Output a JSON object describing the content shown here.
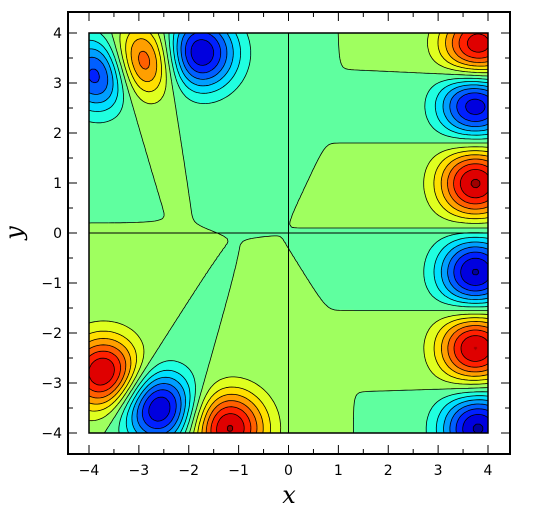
{
  "chart_data": {
    "type": "heatmap",
    "subtype": "filled-contour",
    "title": "",
    "xlabel": "x",
    "ylabel": "y",
    "xlim": [
      -4,
      4
    ],
    "ylim": [
      -4,
      4
    ],
    "x_ticks": [
      -4,
      -3,
      -2,
      -1,
      0,
      1,
      2,
      3,
      4
    ],
    "y_ticks": [
      4,
      3,
      2,
      1,
      0,
      -1,
      -2,
      -3,
      -4
    ],
    "x_tick_labels": [
      "−4",
      "−3",
      "−2",
      "−1",
      "0",
      "1",
      "2",
      "3",
      "4"
    ],
    "y_tick_labels": [
      "4",
      "3",
      "2",
      "1",
      "0",
      "−1",
      "−2",
      "−3",
      "−4"
    ],
    "colormap": "jet",
    "colormap_stops": [
      "#00007f",
      "#0000ff",
      "#007fff",
      "#00ffff",
      "#7fff7f",
      "#ffff00",
      "#ff7f00",
      "#ff0000",
      "#7f0000"
    ],
    "contour_line_color": "#000000",
    "grid": false,
    "reference_lines": [
      "x = 0",
      "y = 0"
    ],
    "features": [
      {
        "x": -3.0,
        "y": 3.4,
        "sign": "positive"
      },
      {
        "x": -3.7,
        "y": 3.2,
        "sign": "negative"
      },
      {
        "x": -1.8,
        "y": 3.6,
        "sign": "negative"
      },
      {
        "x": 3.8,
        "y": 3.7,
        "sign": "positive"
      },
      {
        "x": 3.75,
        "y": 2.6,
        "sign": "negative"
      },
      {
        "x": 3.75,
        "y": 1.0,
        "sign": "positive"
      },
      {
        "x": 3.75,
        "y": -0.8,
        "sign": "negative"
      },
      {
        "x": 3.75,
        "y": -2.3,
        "sign": "positive"
      },
      {
        "x": 3.8,
        "y": -3.9,
        "sign": "negative"
      },
      {
        "x": -3.7,
        "y": -2.8,
        "sign": "positive"
      },
      {
        "x": -2.6,
        "y": -3.5,
        "sign": "negative"
      },
      {
        "x": -1.2,
        "y": -3.9,
        "sign": "positive"
      }
    ]
  }
}
